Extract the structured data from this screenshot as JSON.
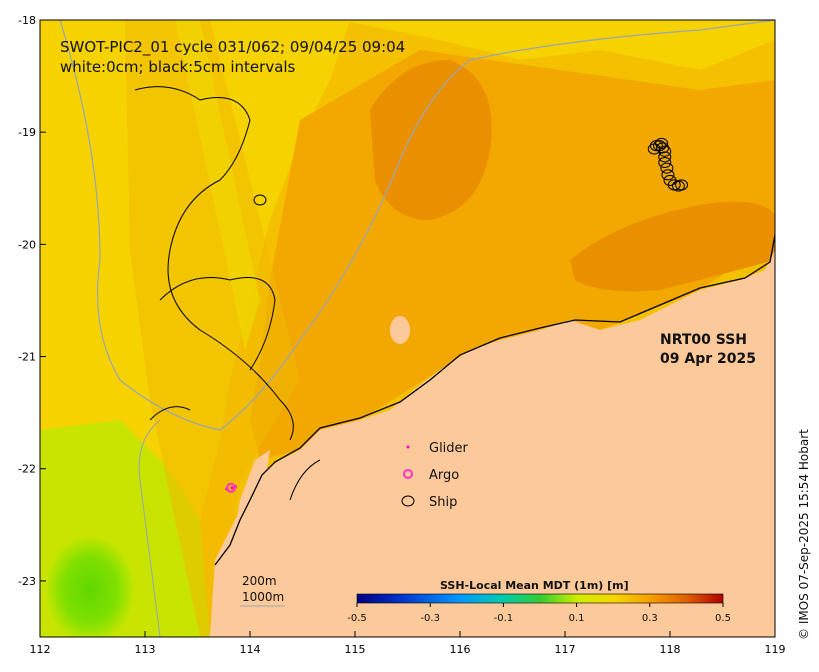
{
  "title": {
    "line1": "SWOT-PIC2_01 cycle 031/062; 09/04/25 09:04",
    "line2": "white:0cm; black:5cm intervals"
  },
  "product": {
    "name": "NRT00 SSH",
    "date": "09 Apr 2025"
  },
  "axes": {
    "lon_ticks": [
      "112",
      "113",
      "114",
      "115",
      "116",
      "117",
      "118",
      "119"
    ],
    "lat_ticks": [
      "-18",
      "-19",
      "-20",
      "-21",
      "-22",
      "-23"
    ],
    "lon_range": [
      112,
      119
    ],
    "lat_range": [
      -23.5,
      -18
    ]
  },
  "legend": {
    "glider": "Glider",
    "argo": "Argo",
    "ship": "Ship"
  },
  "scale": {
    "label1": "200m",
    "label2": "1000m"
  },
  "colorbar": {
    "title": "SSH-Local Mean MDT (1m) [m]",
    "ticks": [
      "-0.5",
      "-0.3",
      "-0.1",
      "0.1",
      "0.3",
      "0.5"
    ],
    "range": [
      -0.5,
      0.5
    ]
  },
  "credit": "© IMOS 07-Sep-2025 15:54 Hobart",
  "colors": {
    "land": "#fcc99b",
    "sea_base": "#f5b800",
    "sea_orange": "#f0a000",
    "sea_dark": "#e88e00",
    "sea_yellow": "#f5d800",
    "sea_lime": "#c8e600",
    "sea_green": "#7fe000",
    "glider": "#ff00cc",
    "argo": "#ff33cc"
  },
  "ship_track": [
    [
      117.87,
      -19.12
    ],
    [
      117.9,
      -19.12
    ],
    [
      117.93,
      -19.14
    ],
    [
      117.95,
      -19.17
    ],
    [
      117.95,
      -19.22
    ],
    [
      117.95,
      -19.27
    ],
    [
      117.97,
      -19.32
    ],
    [
      117.98,
      -19.38
    ],
    [
      118.0,
      -19.43
    ],
    [
      118.04,
      -19.47
    ],
    [
      118.08,
      -19.48
    ],
    [
      118.11,
      -19.47
    ],
    [
      117.92,
      -19.1
    ],
    [
      117.85,
      -19.15
    ]
  ],
  "glider_points": [
    [
      113.78,
      -22.18
    ],
    [
      113.83,
      -22.17
    ],
    [
      113.86,
      -22.16
    ]
  ],
  "argo_points": [
    [
      113.82,
      -22.17
    ]
  ]
}
